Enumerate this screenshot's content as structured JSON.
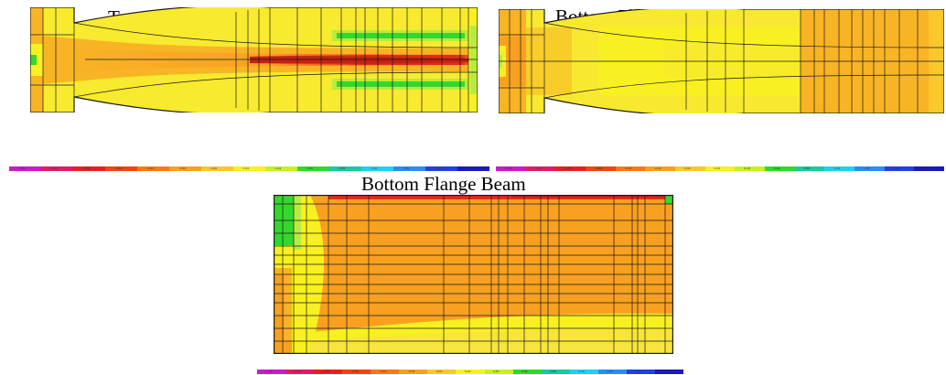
{
  "titles": {
    "top_flange": "Top Flange Beam",
    "bottom_flange": "Bottom Flange Beam",
    "bottom_flange_2": "Bottom Flange Beam"
  },
  "colorscale": {
    "colors": [
      "#c81cc8",
      "#e01c64",
      "#e8201c",
      "#f04414",
      "#f8781c",
      "#f8a020",
      "#f8c82c",
      "#f8f020",
      "#c8f020",
      "#34d82c",
      "#1cc8a0",
      "#20d0f0",
      "#2c8cf0",
      "#2040e0",
      "#1a1ab8"
    ],
    "tick_labels": [
      "-1.32",
      "-1.10",
      "-0.88",
      "-0.66",
      "-0.44",
      "-0.22",
      "0.00",
      "0.22",
      "0.44",
      "0.66",
      "0.88",
      "1.10",
      "1.32",
      "1.54",
      "1.76"
    ]
  },
  "palette": {
    "orange": "#f8a020",
    "light_orange": "#f8b424",
    "yellow": "#f8f020",
    "yellow_pale": "#f8e43c",
    "red": "#e8281c",
    "deep_red": "#c82014",
    "green": "#34d82c",
    "lime": "#b8ec3c",
    "grid": "#1a1a1a"
  }
}
